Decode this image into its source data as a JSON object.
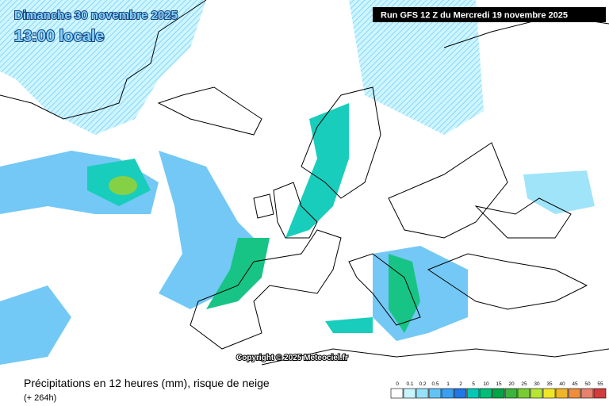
{
  "header": {
    "date": "Dimanche 30 novembre 2025",
    "time": "13:00 locale",
    "run": "Run GFS 12 Z du Mercredi 19 novembre 2025"
  },
  "copyright": "Copyright © 2025 Meteociel.fr",
  "footer": {
    "title": "Précipitations en 12 heures (mm), risque de neige",
    "lead": "(+ 264h)"
  },
  "legend": {
    "items": [
      {
        "label": "0",
        "color": "#ffffff"
      },
      {
        "label": "0.1",
        "color": "#c8f5ff"
      },
      {
        "label": "0.2",
        "color": "#96e1fa"
      },
      {
        "label": "0.5",
        "color": "#64c3f5"
      },
      {
        "label": "1",
        "color": "#3ca0f0"
      },
      {
        "label": "2",
        "color": "#1e78e6"
      },
      {
        "label": "5",
        "color": "#00c8b4"
      },
      {
        "label": "10",
        "color": "#00be78"
      },
      {
        "label": "15",
        "color": "#00a546"
      },
      {
        "label": "20",
        "color": "#3cb43c"
      },
      {
        "label": "25",
        "color": "#78cd32"
      },
      {
        "label": "30",
        "color": "#b4e632"
      },
      {
        "label": "35",
        "color": "#f0e628"
      },
      {
        "label": "40",
        "color": "#f0b428"
      },
      {
        "label": "45",
        "color": "#f08c3c"
      },
      {
        "label": "50",
        "color": "#e6826e"
      },
      {
        "label": "55",
        "color": "#d23c3c"
      }
    ]
  }
}
